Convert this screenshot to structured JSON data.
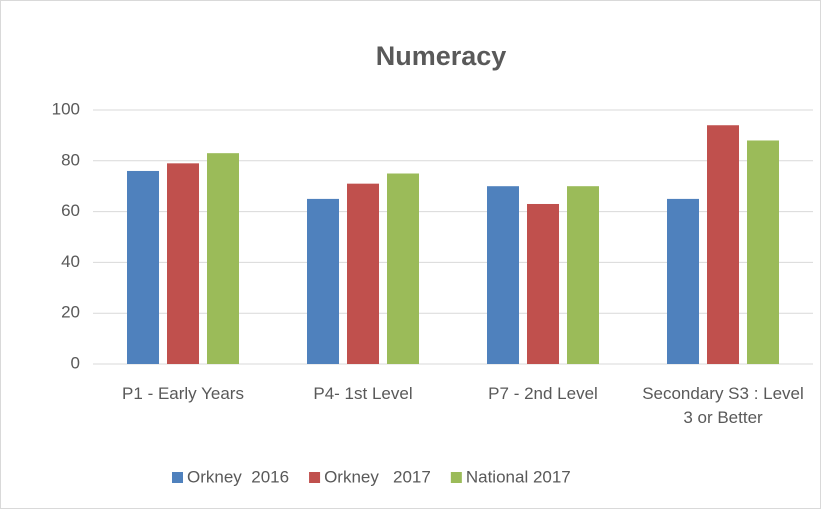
{
  "chart_data": {
    "type": "bar",
    "title": "Numeracy",
    "categories": [
      "P1  - Early Years",
      "P4- 1st Level",
      "P7 - 2nd Level",
      "Secondary S3 : Level 3 or Better"
    ],
    "series": [
      {
        "name": "Orkney  2016",
        "color": "#4f81bd",
        "values": [
          76,
          65,
          70,
          65
        ]
      },
      {
        "name": "Orkney   2017",
        "color": "#c0504d",
        "values": [
          79,
          71,
          63,
          94
        ]
      },
      {
        "name": "National 2017",
        "color": "#9bbb59",
        "values": [
          83,
          75,
          70,
          88
        ]
      }
    ],
    "ylim": [
      0,
      100
    ],
    "yticks": [
      0,
      20,
      40,
      60,
      80,
      100
    ],
    "grid": true,
    "legend": "bottom"
  }
}
